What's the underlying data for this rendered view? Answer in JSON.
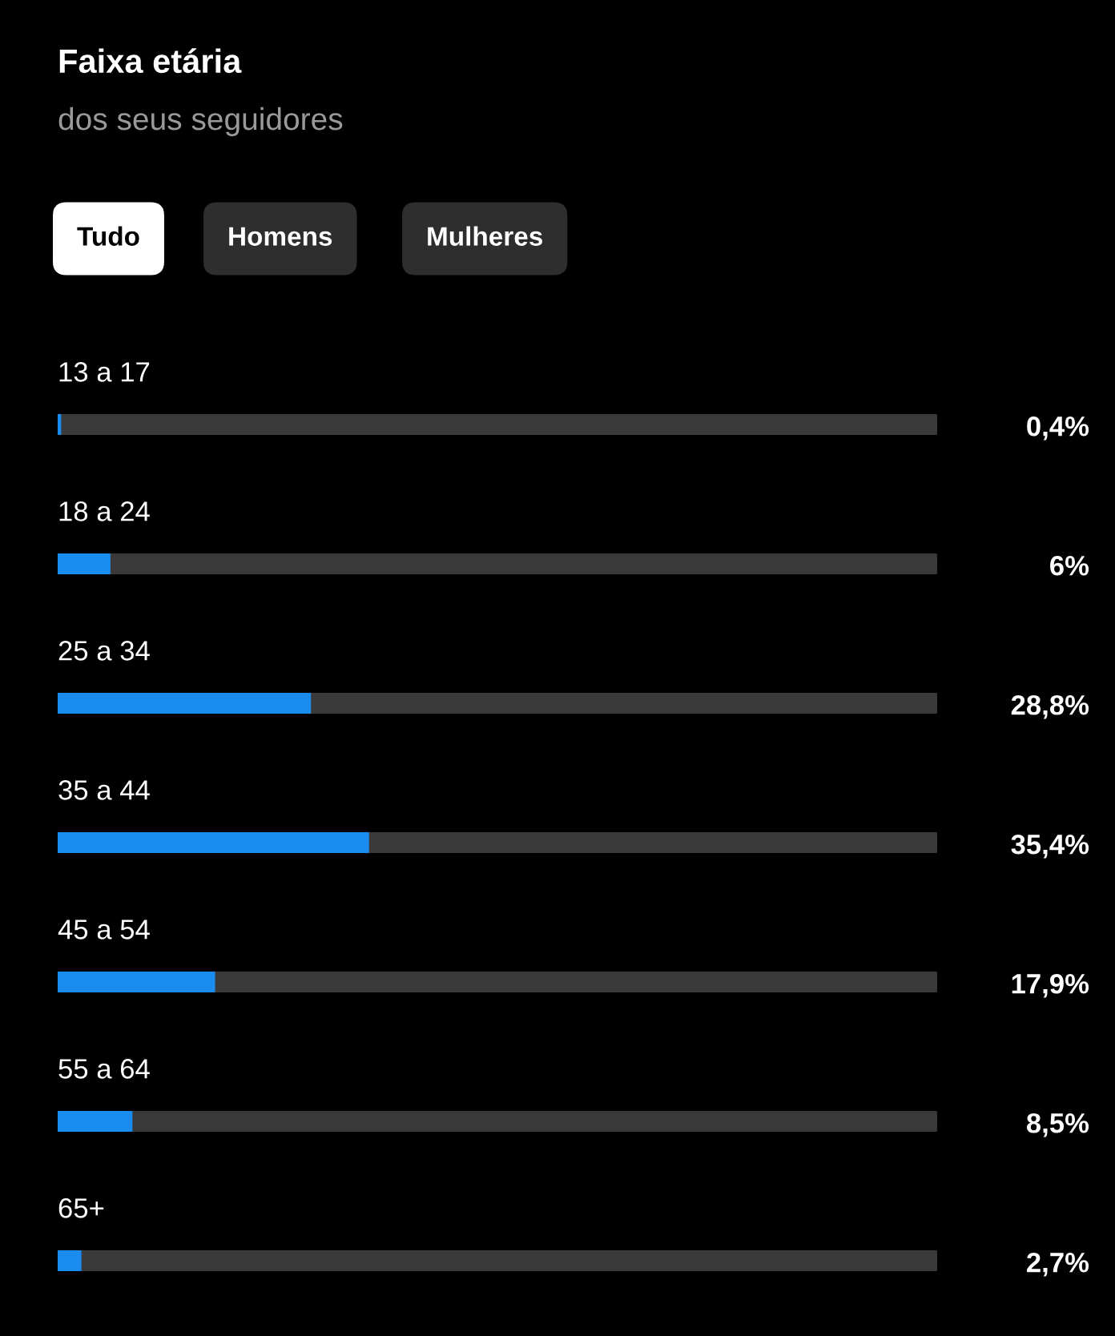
{
  "chart_data": {
    "type": "bar",
    "orientation": "horizontal",
    "title": "Faixa etária",
    "subtitle": "dos seus seguidores",
    "annotations": [
      "Tudo",
      "Homens",
      "Mulheres"
    ],
    "categories": [
      "13 a 17",
      "18 a 24",
      "25 a 34",
      "35 a 44",
      "45 a 54",
      "55 a 64",
      "65+"
    ],
    "values": [
      0.4,
      6,
      28.8,
      35.4,
      17.9,
      8.5,
      2.7
    ],
    "value_labels": [
      "0,4%",
      "6%",
      "28,8%",
      "35,4%",
      "17,9%",
      "8,5%",
      "2,7%"
    ],
    "color": "#1a8cf0",
    "xlim": [
      0,
      100
    ]
  }
}
